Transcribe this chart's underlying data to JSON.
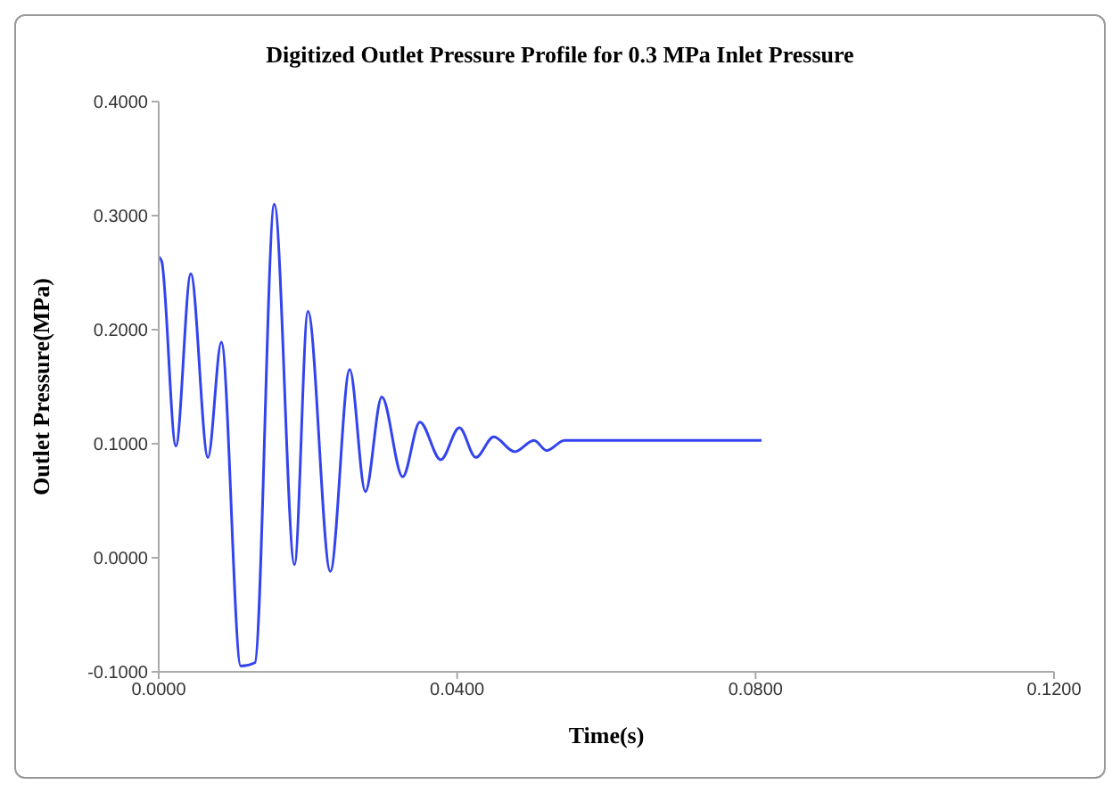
{
  "chart_data": {
    "type": "line",
    "title": "Digitized Outlet Pressure Profile for 0.3 MPa Inlet Pressure",
    "xlabel": "Time(s)",
    "ylabel": "Outlet Pressure(MPa)",
    "x": [
      0,
      0.0004,
      0.0023,
      0.0043,
      0.0066,
      0.0084,
      0.011,
      0.0129,
      0.0155,
      0.0182,
      0.02,
      0.023,
      0.0256,
      0.0277,
      0.0299,
      0.0327,
      0.035,
      0.0378,
      0.0403,
      0.0425,
      0.0449,
      0.0477,
      0.0503,
      0.052,
      0.0544,
      0.0808
    ],
    "series": [
      {
        "color": "#3344ee",
        "values": [
          0.264,
          0.26,
          0.098,
          0.249,
          0.088,
          0.189,
          -0.095,
          -0.092,
          0.31,
          -0.006,
          0.216,
          -0.012,
          0.165,
          0.058,
          0.141,
          0.071,
          0.119,
          0.086,
          0.114,
          0.088,
          0.106,
          0.093,
          0.103,
          0.094,
          0.103,
          0.103
        ]
      }
    ],
    "xlim": [
      0,
      0.12
    ],
    "xticks": [
      {
        "value": 0,
        "label": "0.0000"
      },
      {
        "value": 0.04,
        "label": "0.0400"
      },
      {
        "value": 0.08,
        "label": "0.0800"
      },
      {
        "value": 0.12,
        "label": "0.1200"
      }
    ],
    "ylim": [
      -0.1,
      0.4
    ],
    "yticks": [
      {
        "value": -0.1,
        "label": "-0.1000"
      },
      {
        "value": 0,
        "label": "0.0000"
      },
      {
        "value": 0.1,
        "label": "0.1000"
      },
      {
        "value": 0.2,
        "label": "0.2000"
      },
      {
        "value": 0.3,
        "label": "0.3000"
      },
      {
        "value": 0.4,
        "label": "0.4000"
      }
    ],
    "grid": false,
    "legend": false,
    "marker": "none",
    "line_style": "solid"
  }
}
